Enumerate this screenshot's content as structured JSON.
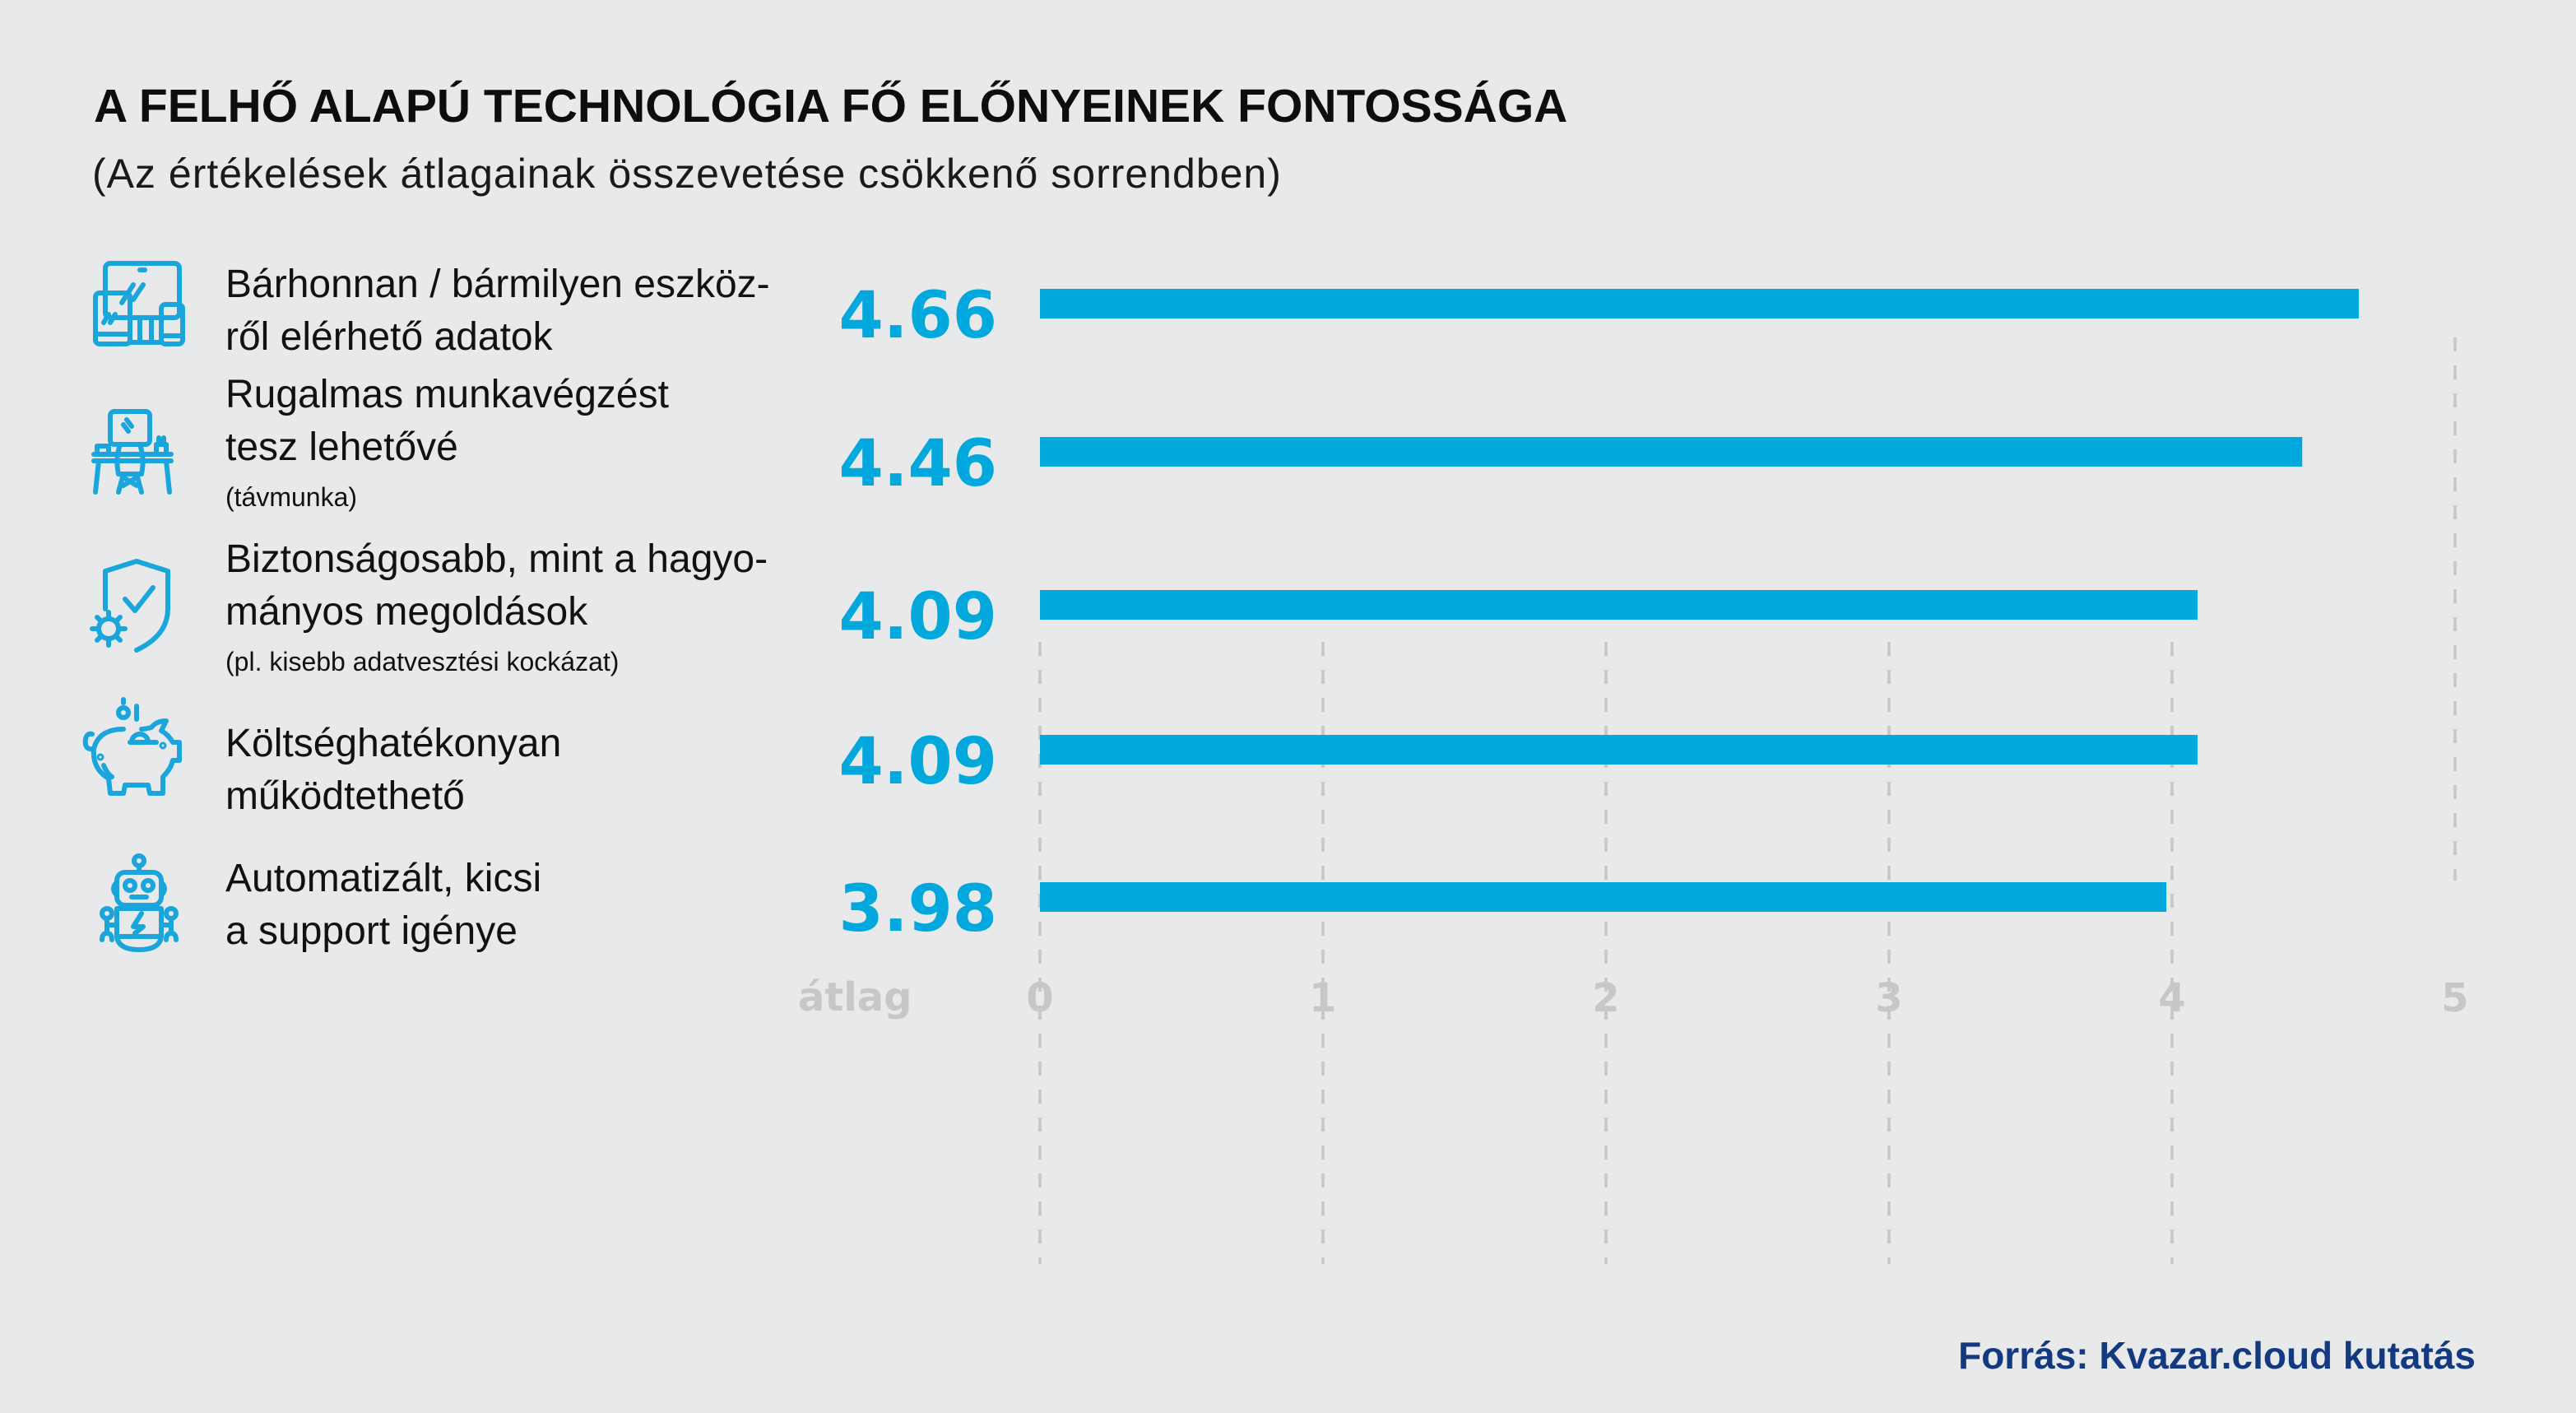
{
  "title": "A FELHŐ ALAPÚ TECHNOLÓGIA FŐ ELŐNYEINEK FONTOSSÁGA",
  "subtitle": "(Az értékelések átlagainak összevetése csökkenő sorrendben)",
  "source": "Forrás: Kvazar.cloud kutatás",
  "colors": {
    "bar": "#00a8de",
    "icon": "#1aa6dc",
    "grid": "#c8c9cb",
    "source": "#133a80",
    "background": "#e8e9eb"
  },
  "categories": [
    {
      "icon": "devices-icon",
      "lines": [
        "Bárhonnan / bármilyen eszköz-",
        "ről elérhető adatok"
      ],
      "note": ""
    },
    {
      "icon": "remote-work-desk-icon",
      "lines": [
        "Rugalmas munkavégzést",
        "tesz lehetővé"
      ],
      "note": "(távmunka)"
    },
    {
      "icon": "shield-check-gear-icon",
      "lines": [
        "Biztonságosabb, mint a hagyo-",
        "mányos megoldások"
      ],
      "note": "(pl. kisebb adatvesztési kockázat)"
    },
    {
      "icon": "piggy-bank-icon",
      "lines": [
        "Költséghatékonyan",
        "működtethető"
      ],
      "note": ""
    },
    {
      "icon": "robot-icon",
      "lines": [
        "Automatizált, kicsi",
        "a support igénye"
      ],
      "note": ""
    }
  ],
  "chart_data": {
    "type": "bar",
    "orientation": "horizontal",
    "title": "A FELHŐ ALAPÚ TECHNOLÓGIA FŐ ELŐNYEINEK FONTOSSÁGA",
    "subtitle": "(Az értékelések átlagainak összevetése csökkenő sorrendben)",
    "categories": [
      "Bárhonnan / bármilyen eszközről elérhető adatok",
      "Rugalmas munkavégzést tesz lehetővé (távmunka)",
      "Biztonságosabb, mint a hagyományos megoldások (pl. kisebb adatvesztési kockázat)",
      "Költséghatékonyan működtethető",
      "Automatizált, kicsi a support igénye"
    ],
    "values": [
      4.66,
      4.46,
      4.09,
      4.09,
      3.98
    ],
    "value_labels": [
      "4.66",
      "4.46",
      "4.09",
      "4.09",
      "3.98"
    ],
    "xlabel": "átlag",
    "ylabel": "",
    "xlim": [
      0,
      5
    ],
    "xticks": [
      "0",
      "1",
      "2",
      "3",
      "4",
      "5"
    ],
    "grid": "vertical dashed",
    "legend": "none"
  }
}
